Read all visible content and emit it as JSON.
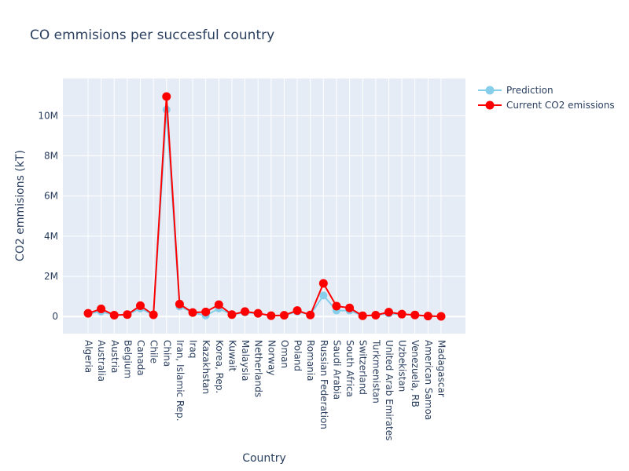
{
  "chart_data": {
    "type": "line",
    "title": "CO emmisions per succesful country",
    "xlabel": "Country",
    "ylabel": "CO2 emmisions (kT)",
    "ylim": [
      -850000,
      11850000
    ],
    "y_ticks": [
      0,
      2000000,
      4000000,
      6000000,
      8000000,
      10000000
    ],
    "y_tick_labels": [
      "0",
      "2M",
      "4M",
      "6M",
      "8M",
      "10M"
    ],
    "grid": true,
    "legend_position": "top-right",
    "categories": [
      "Algeria",
      "Australia",
      "Austria",
      "Belgium",
      "Canada",
      "Chile",
      "China",
      "Iran, Islamic Rep.",
      "Iraq",
      "Kazakhstan",
      "Korea, Rep.",
      "Kuwait",
      "Malaysia",
      "Netherlands",
      "Norway",
      "Oman",
      "Poland",
      "Romania",
      "Russian Federation",
      "Saudi Arabia",
      "South Africa",
      "Switzerland",
      "Turkmenistan",
      "United Arab Emirates",
      "Uzbekistan",
      "Venezuela, RB",
      "American Samoa",
      "Madagascar"
    ],
    "series": [
      {
        "name": "Prediction",
        "color": "#87ceeb",
        "values": [
          150000,
          250000,
          70000,
          90000,
          400000,
          80000,
          10300000,
          500000,
          200000,
          50000,
          400000,
          100000,
          200000,
          150000,
          50000,
          50000,
          250000,
          90000,
          1050000,
          300000,
          300000,
          40000,
          70000,
          150000,
          100000,
          80000,
          20000,
          10000
        ]
      },
      {
        "name": "Current CO2 emissions",
        "color": "#ff0000",
        "values": [
          160000,
          380000,
          70000,
          100000,
          540000,
          90000,
          10950000,
          620000,
          200000,
          230000,
          590000,
          100000,
          250000,
          160000,
          45000,
          65000,
          300000,
          80000,
          1650000,
          520000,
          430000,
          40000,
          70000,
          220000,
          120000,
          80000,
          25000,
          10000
        ]
      }
    ]
  }
}
